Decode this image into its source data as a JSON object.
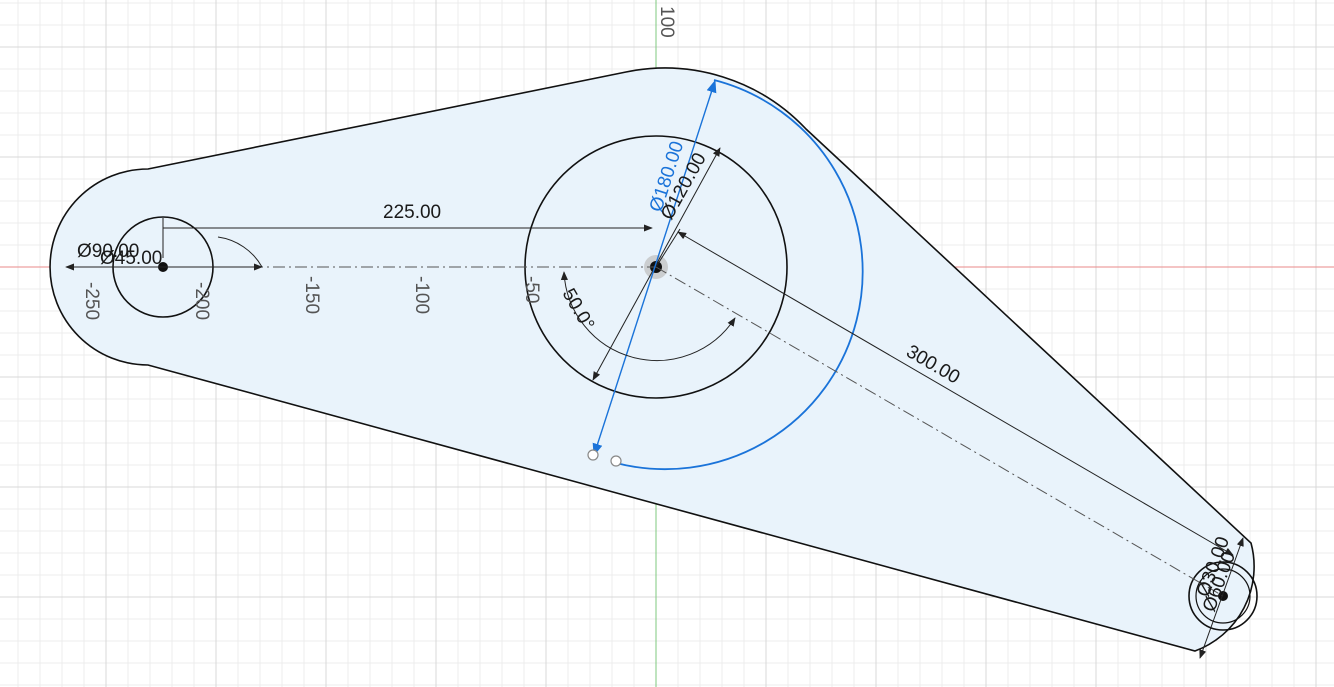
{
  "colors": {
    "grid_minor": "#ececec",
    "grid_major": "#d9d9d9",
    "x_axis": "#e88a8a",
    "y_axis": "#7fc87f",
    "profile_fill": "#e9f3fb",
    "sketch_line": "#111111",
    "selected": "#1a73d9",
    "dimension": "#222222"
  },
  "axis_labels": {
    "x": [
      "-250",
      "-200",
      "-150",
      "-100",
      "-50"
    ],
    "y": [
      "100"
    ]
  },
  "dimensions": {
    "center_distance": "225.00",
    "arm_length": "300.00",
    "left_outer_dia": "Ø90.00",
    "left_inner_dia": "Ø45.00",
    "hub_dia": "Ø120.00",
    "hub_outer_dia_selected": "Ø180.00",
    "arm_angle": "50.0°",
    "right_outer_dia": "Ø60.00",
    "right_inner_dia": "Ø30.00"
  }
}
